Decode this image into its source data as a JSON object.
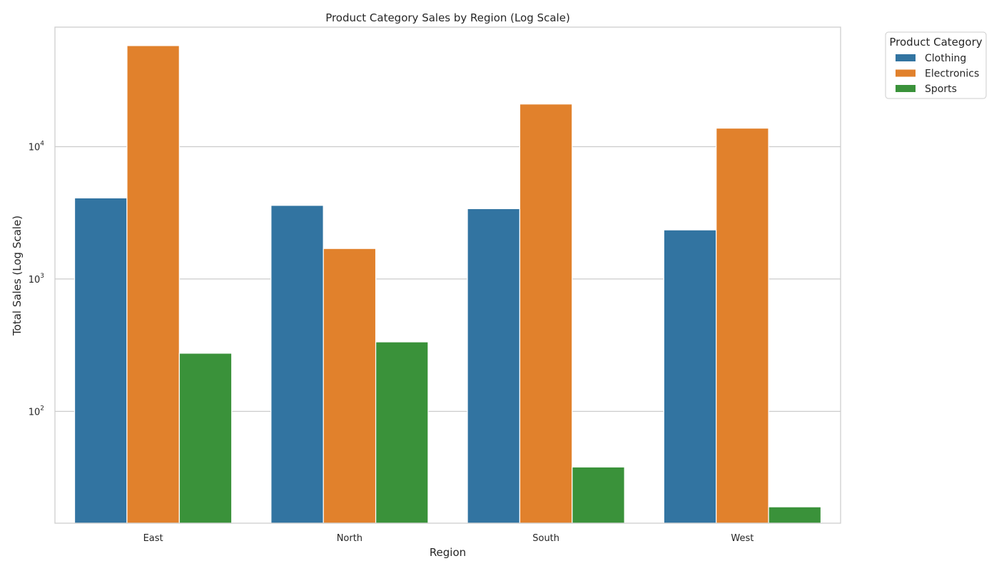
{
  "chart_data": {
    "type": "bar",
    "title": "Product Category Sales by Region (Log Scale)",
    "xlabel": "Region",
    "ylabel": "Total Sales (Log Scale)",
    "y_scale": "log",
    "ylim": [
      14.3,
      80000
    ],
    "grid": "horizontal",
    "categories": [
      "East",
      "North",
      "South",
      "West"
    ],
    "series": [
      {
        "name": "Clothing",
        "color": "#3274a1",
        "values": [
          4100,
          3600,
          3400,
          2350
        ]
      },
      {
        "name": "Electronics",
        "color": "#e1812c",
        "values": [
          58000,
          1700,
          21000,
          13800
        ]
      },
      {
        "name": "Sports",
        "color": "#3a923a",
        "values": [
          275,
          335,
          38,
          19
        ]
      }
    ],
    "y_ticks": [
      {
        "value": 100,
        "base": "10",
        "exp": "2"
      },
      {
        "value": 1000,
        "base": "10",
        "exp": "3"
      },
      {
        "value": 10000,
        "base": "10",
        "exp": "4"
      }
    ],
    "legend": {
      "title": "Product Category",
      "placement": "upper-right-outside"
    }
  }
}
